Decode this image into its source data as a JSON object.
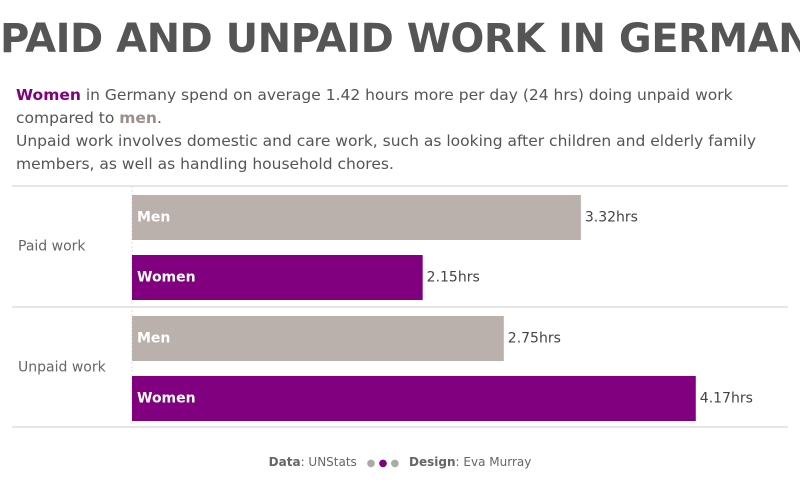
{
  "chart_data": {
    "type": "bar",
    "orientation": "horizontal",
    "title": "PAID AND UNPAID WORK IN GERMANY",
    "subtitle": [
      "Women",
      " in Germany spend on average 1.42 hours more per day (24 hrs) doing unpaid work",
      "compared to ",
      "men",
      "."
    ],
    "description": [
      "Unpaid work involves domestic and care work, such as looking after children and elderly family",
      "members, as well as handling household chores."
    ],
    "categories": [
      "Paid work",
      "Unpaid work"
    ],
    "series": [
      {
        "name": "Men",
        "color": "#bab0ac",
        "values": [
          3.32,
          2.75
        ],
        "value_labels": [
          "3.32hrs",
          "2.75hrs"
        ]
      },
      {
        "name": "Women",
        "color": "#800080",
        "values": [
          2.15,
          4.17
        ],
        "value_labels": [
          "2.15hrs",
          "4.17hrs"
        ]
      }
    ],
    "footer": {
      "source_label": "Data",
      "source": ": UNStats",
      "design_label": "Design",
      "design": ": Eva Murray"
    }
  }
}
